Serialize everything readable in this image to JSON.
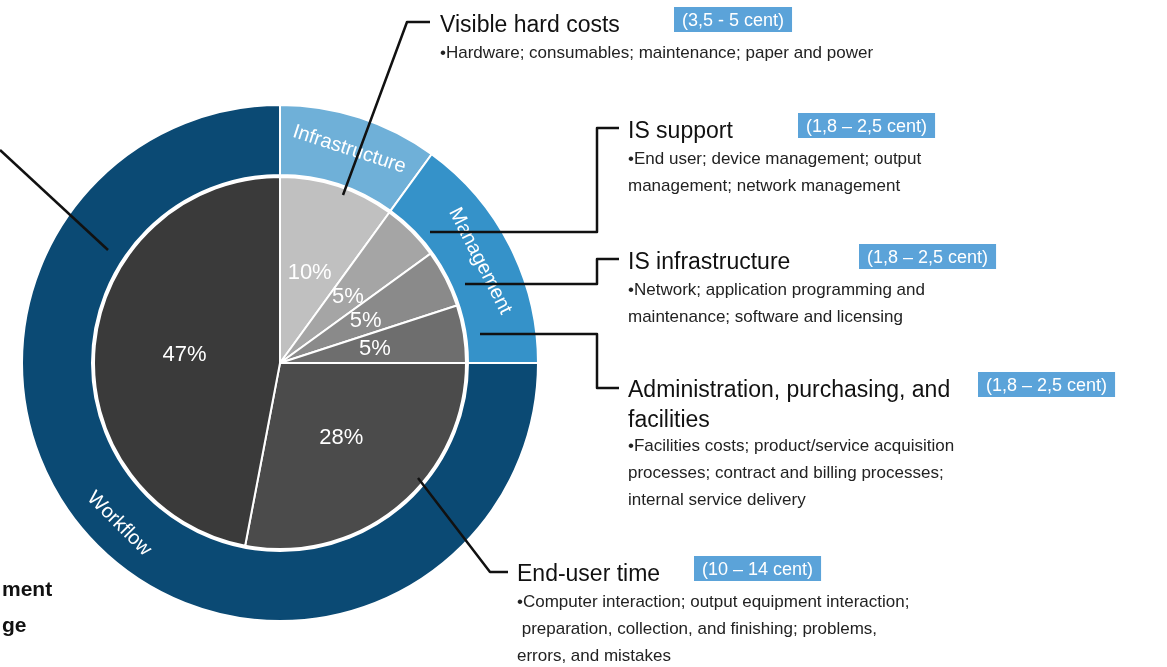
{
  "chart_data": [
    {
      "type": "pie",
      "legend": false,
      "categories": [
        "Visible hard costs",
        "IS support",
        "IS infrastructure",
        "Administration, purchasing, and facilities",
        "End-user time",
        null
      ],
      "values": [
        10,
        5,
        5,
        5,
        28,
        47
      ],
      "colors": [
        "#c0c0c0",
        "#a5a5a5",
        "#8a8a8a",
        "#6e6e6e",
        "#4b4b4b",
        "#3a3a3a"
      ],
      "value_labels": [
        "10%",
        "5%",
        "5%",
        "5%",
        "28%",
        "47%"
      ],
      "annotations": [
        "(3,5 - 5 cent)",
        "(1,8 – 2,5 cent)",
        "(1,8 – 2,5 cent)",
        "(1,8 – 2,5 cent)",
        "(10 – 14 cent)",
        "•Hardware; consumables; maintenance; paper and power",
        "•End user; device management; output management; network management",
        "•Network; application programming and maintenance; software and licensing",
        "•Facilities costs; product/service acquisition processes; contract and billing processes; internal service delivery",
        "•Computer interaction; output equipment interaction; preparation, collection, and finishing; problems, errors, and mistakes",
        "ment",
        "ge"
      ]
    },
    {
      "type": "donut",
      "legend": false,
      "categories": [
        "Infrastructure",
        "Management",
        "Workflow"
      ],
      "values": [
        10,
        15,
        75
      ],
      "colors": [
        "#6fb0d8",
        "#3592c9",
        "#0b4a74"
      ]
    }
  ]
}
